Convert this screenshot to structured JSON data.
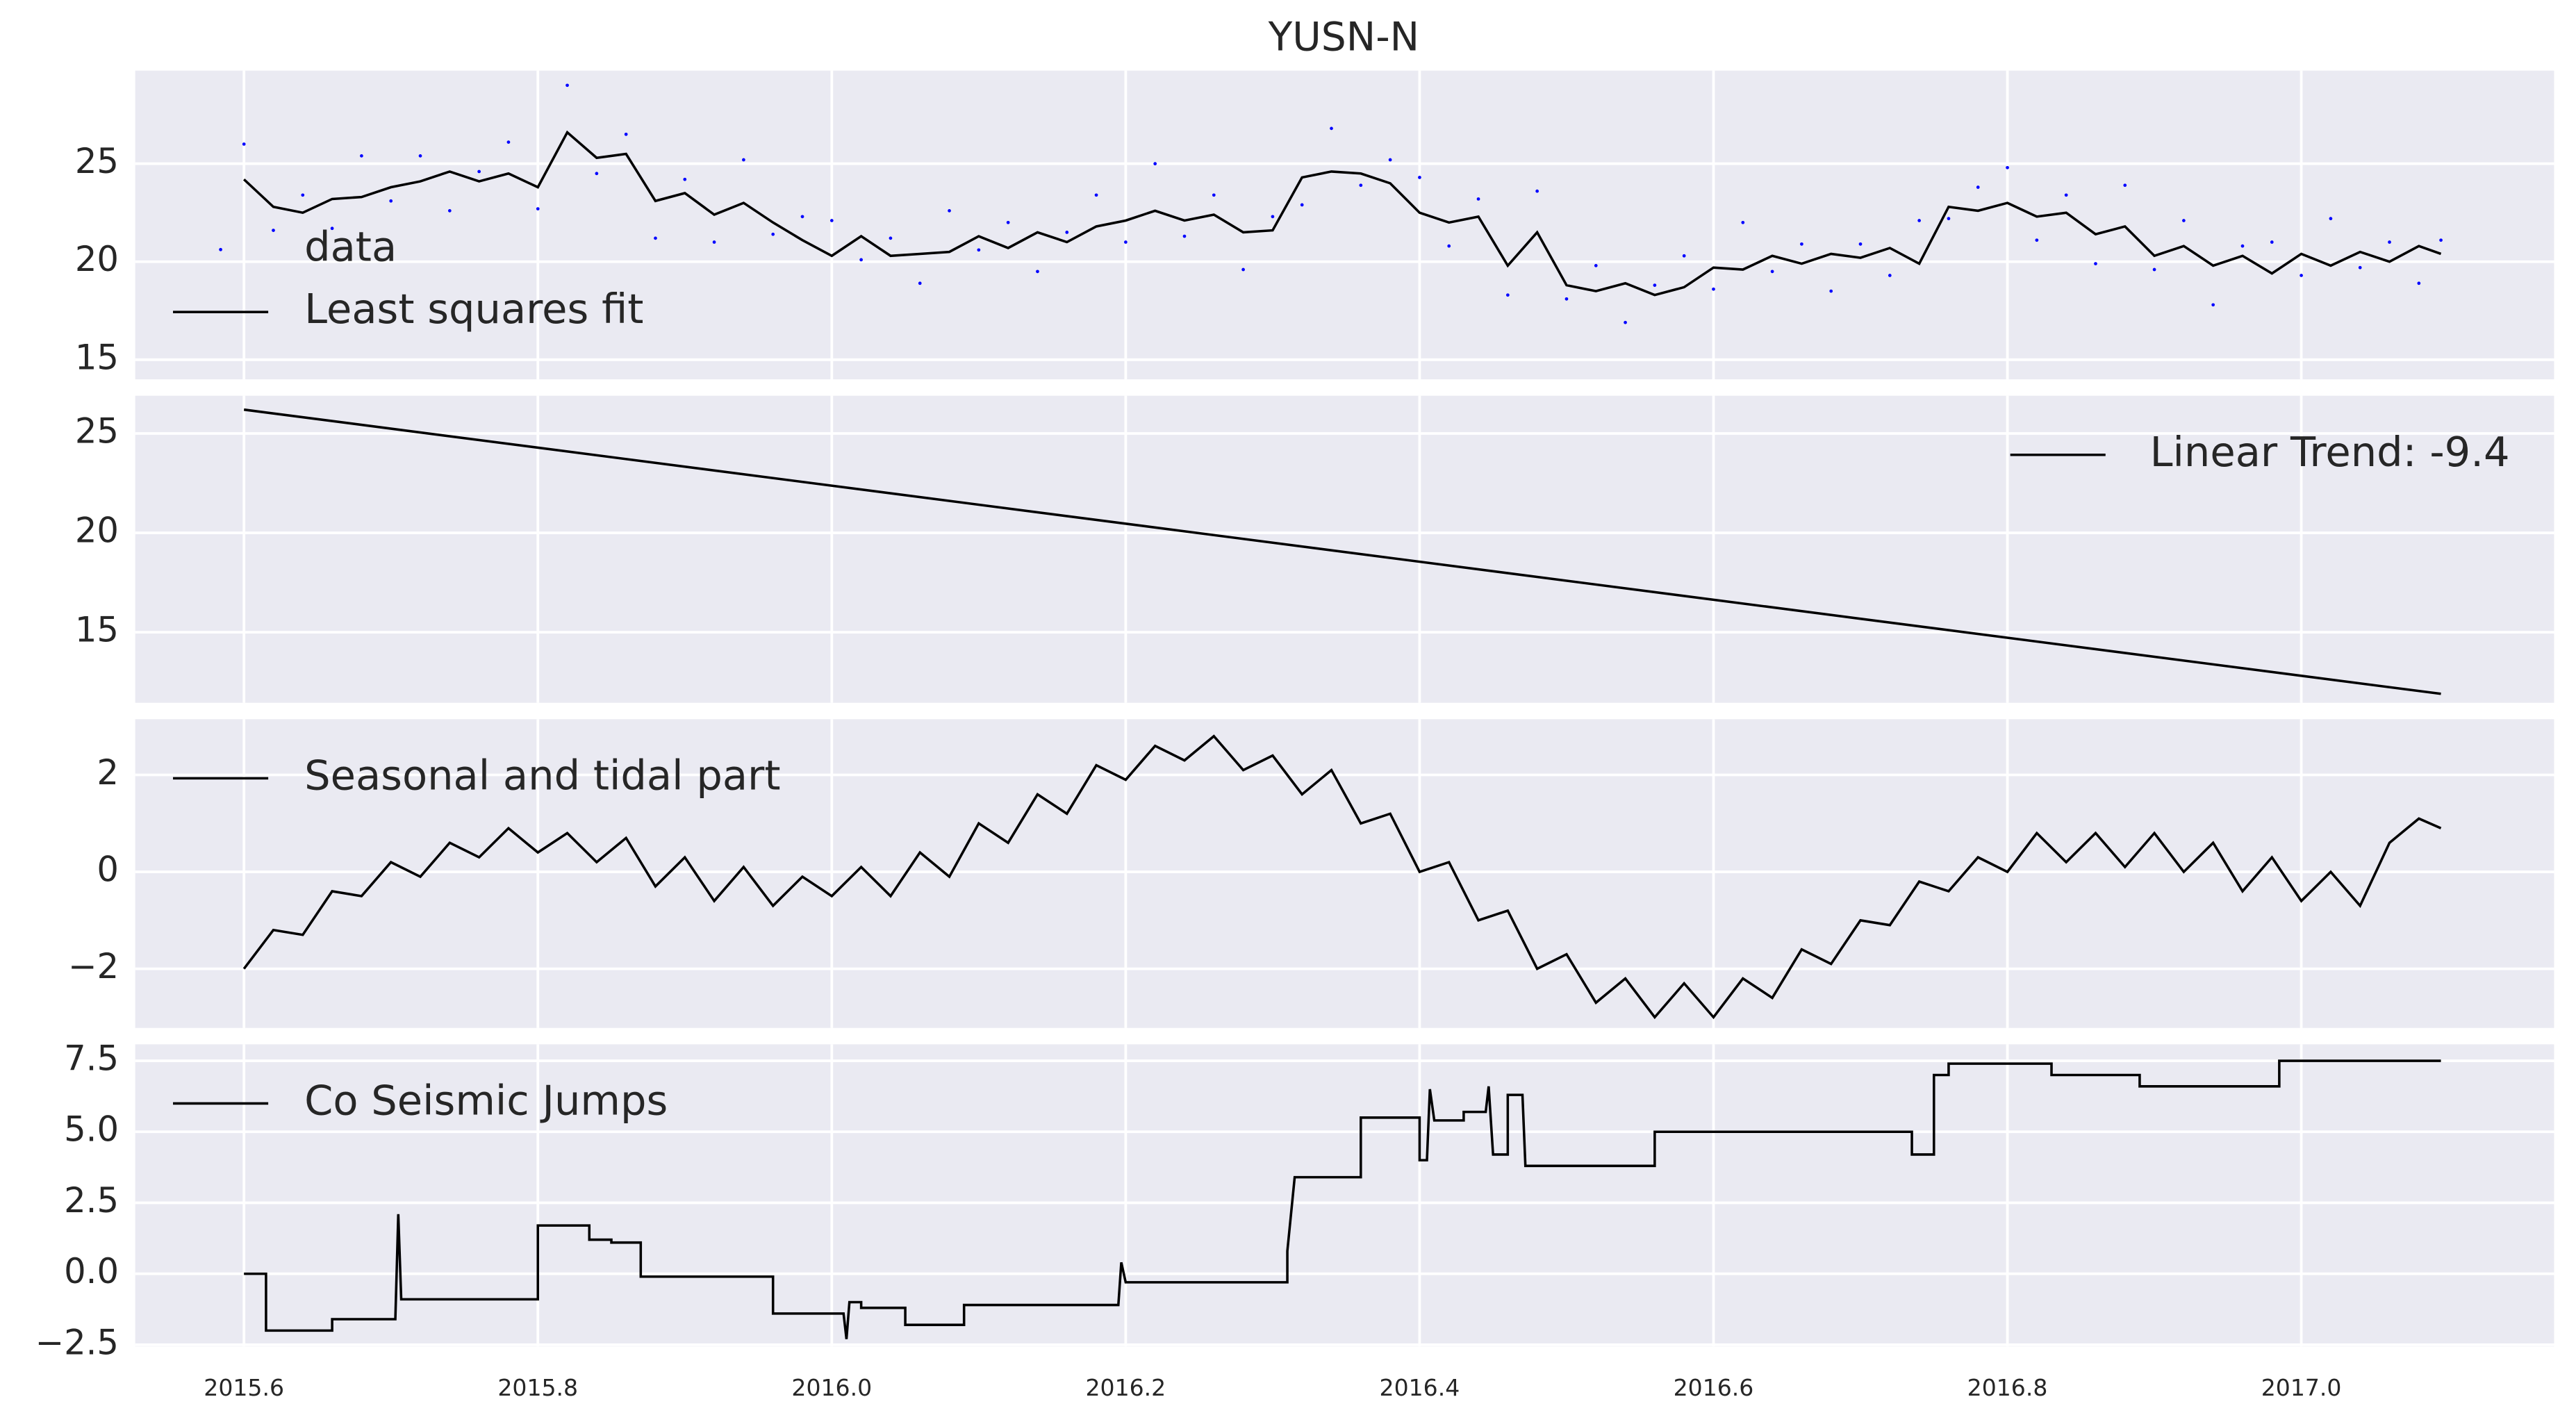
{
  "chart_data": [
    {
      "type": "line",
      "title": "YUSN-N",
      "legend": "lower left",
      "grid": true,
      "xlim": [
        2015.526,
        2017.172
      ],
      "xticks": [
        2015.6,
        2015.8,
        {
          "value": 2016.0,
          "label": "2016.0"
        },
        2016.2,
        2016.4,
        2016.6,
        2016.8,
        {
          "value": 2017.0,
          "label": "2017.0"
        }
      ],
      "ylim": [
        14.0,
        29.75
      ],
      "yticks": [
        15,
        20,
        25
      ],
      "x": [
        2015.6,
        2015.62,
        2015.64,
        2015.66,
        2015.68,
        2015.7,
        2015.72,
        2015.74,
        2015.76,
        2015.78,
        2015.8,
        2015.82,
        2015.84,
        2015.86,
        2015.88,
        2015.9,
        2015.92,
        2015.94,
        2015.96,
        2015.98,
        2016.0,
        2016.02,
        2016.04,
        2016.06,
        2016.08,
        2016.1,
        2016.12,
        2016.14,
        2016.16,
        2016.18,
        2016.2,
        2016.22,
        2016.24,
        2016.26,
        2016.28,
        2016.3,
        2016.32,
        2016.34,
        2016.36,
        2016.38,
        2016.4,
        2016.42,
        2016.44,
        2016.46,
        2016.48,
        2016.5,
        2016.52,
        2016.54,
        2016.56,
        2016.58,
        2016.6,
        2016.62,
        2016.64,
        2016.66,
        2016.68,
        2016.7,
        2016.72,
        2016.74,
        2016.76,
        2016.78,
        2016.8,
        2016.82,
        2016.84,
        2016.86,
        2016.88,
        2016.9,
        2016.92,
        2016.94,
        2016.96,
        2016.98,
        2017.0,
        2017.02,
        2017.04,
        2017.06,
        2017.08,
        2017.095
      ],
      "series": [
        {
          "name": "data",
          "type": "scatter",
          "color": "#0000ff",
          "values": [
            26.0,
            21.6,
            23.4,
            21.7,
            25.4,
            23.1,
            25.4,
            22.6,
            24.6,
            26.1,
            22.7,
            29.0,
            24.5,
            26.5,
            21.2,
            24.2,
            21.0,
            25.2,
            21.4,
            22.3,
            22.1,
            20.1,
            21.2,
            18.9,
            22.6,
            20.6,
            22.0,
            19.5,
            21.5,
            23.4,
            21.0,
            25.0,
            21.3,
            23.4,
            19.6,
            22.3,
            22.9,
            26.8,
            23.9,
            25.2,
            24.3,
            20.8,
            23.2,
            18.3,
            23.6,
            18.1,
            19.8,
            16.9,
            18.8,
            20.3,
            18.6,
            22.0,
            19.5,
            20.9,
            18.5,
            20.9,
            19.3,
            22.1,
            22.2,
            23.8,
            24.8,
            21.1,
            23.4,
            19.9,
            23.9,
            19.6,
            22.1,
            17.8,
            20.8,
            21.0,
            19.3,
            22.2,
            19.7,
            21.0,
            18.9,
            21.1
          ]
        },
        {
          "name": "Least squares fit",
          "type": "line",
          "color": "#000000",
          "values": [
            24.2,
            22.8,
            22.5,
            23.2,
            23.3,
            23.8,
            24.1,
            24.6,
            24.1,
            24.5,
            23.8,
            26.6,
            25.3,
            25.5,
            23.1,
            23.5,
            22.4,
            23.0,
            22.0,
            21.1,
            20.3,
            21.3,
            20.3,
            20.4,
            20.5,
            21.3,
            20.7,
            21.5,
            21.0,
            21.8,
            22.1,
            22.6,
            22.1,
            22.4,
            21.5,
            21.6,
            24.3,
            24.6,
            24.5,
            24.0,
            22.5,
            22.0,
            22.3,
            19.8,
            21.5,
            18.8,
            18.5,
            18.9,
            18.3,
            18.7,
            19.7,
            19.6,
            20.3,
            19.9,
            20.4,
            20.2,
            20.7,
            19.9,
            22.8,
            22.6,
            23.0,
            22.3,
            22.5,
            21.4,
            21.8,
            20.3,
            20.8,
            19.8,
            20.3,
            19.4,
            20.4,
            19.8,
            20.5,
            20.0,
            20.8,
            20.4
          ]
        }
      ]
    },
    {
      "type": "line",
      "legend": "upper right",
      "grid": true,
      "xlim": [
        2015.526,
        2017.172
      ],
      "xticks": [
        2015.6,
        2015.8,
        {
          "value": 2016.0,
          "label": "2016.0"
        },
        2016.2,
        2016.4,
        2016.6,
        2016.8,
        {
          "value": 2017.0,
          "label": "2017.0"
        }
      ],
      "ylim": [
        11.45,
        26.9
      ],
      "yticks": [
        15,
        20,
        25
      ],
      "x": [
        2015.6,
        2017.095
      ],
      "series": [
        {
          "name": "Linear Trend: -9.4",
          "type": "line",
          "color": "#000000",
          "values": [
            26.2,
            11.9
          ]
        }
      ]
    },
    {
      "type": "line",
      "legend": "upper left",
      "grid": true,
      "xlim": [
        2015.526,
        2017.172
      ],
      "xticks": [
        2015.6,
        2015.8,
        {
          "value": 2016.0,
          "label": "2016.0"
        },
        2016.2,
        2016.4,
        2016.6,
        2016.8,
        {
          "value": 2017.0,
          "label": "2017.0"
        }
      ],
      "ylim": [
        -3.22,
        3.15
      ],
      "yticks": [
        {
          "value": -2,
          "label": "−2"
        },
        0,
        2
      ],
      "x": [
        2015.6,
        2015.62,
        2015.64,
        2015.66,
        2015.68,
        2015.7,
        2015.72,
        2015.74,
        2015.76,
        2015.78,
        2015.8,
        2015.82,
        2015.84,
        2015.86,
        2015.88,
        2015.9,
        2015.92,
        2015.94,
        2015.96,
        2015.98,
        2016.0,
        2016.02,
        2016.04,
        2016.06,
        2016.08,
        2016.1,
        2016.12,
        2016.14,
        2016.16,
        2016.18,
        2016.2,
        2016.22,
        2016.24,
        2016.26,
        2016.28,
        2016.3,
        2016.32,
        2016.34,
        2016.36,
        2016.38,
        2016.4,
        2016.42,
        2016.44,
        2016.46,
        2016.48,
        2016.5,
        2016.52,
        2016.54,
        2016.56,
        2016.58,
        2016.6,
        2016.62,
        2016.64,
        2016.66,
        2016.68,
        2016.7,
        2016.72,
        2016.74,
        2016.76,
        2016.78,
        2016.8,
        2016.82,
        2016.84,
        2016.86,
        2016.88,
        2016.9,
        2016.92,
        2016.94,
        2016.96,
        2016.98,
        2017.0,
        2017.02,
        2017.04,
        2017.06,
        2017.08,
        2017.095
      ],
      "series": [
        {
          "name": "Seasonal and tidal part",
          "type": "line",
          "color": "#000000",
          "values": [
            -2.0,
            -1.2,
            -1.3,
            -0.4,
            -0.5,
            0.2,
            -0.1,
            0.6,
            0.3,
            0.9,
            0.4,
            0.8,
            0.2,
            0.7,
            -0.3,
            0.3,
            -0.6,
            0.1,
            -0.7,
            -0.1,
            -0.5,
            0.1,
            -0.5,
            0.4,
            -0.1,
            1.0,
            0.6,
            1.6,
            1.2,
            2.2,
            1.9,
            2.6,
            2.3,
            2.8,
            2.1,
            2.4,
            1.6,
            2.1,
            1.0,
            1.2,
            0.0,
            0.2,
            -1.0,
            -0.8,
            -2.0,
            -1.7,
            -2.7,
            -2.2,
            -3.0,
            -2.3,
            -3.0,
            -2.2,
            -2.6,
            -1.6,
            -1.9,
            -1.0,
            -1.1,
            -0.2,
            -0.4,
            0.3,
            0.0,
            0.8,
            0.2,
            0.8,
            0.1,
            0.8,
            0.0,
            0.6,
            -0.4,
            0.3,
            -0.6,
            0.0,
            -0.7,
            0.6,
            1.1,
            0.9
          ]
        }
      ]
    },
    {
      "type": "line",
      "legend": "upper left",
      "grid": true,
      "xlim": [
        2015.526,
        2017.172
      ],
      "xticks": [
        2015.6,
        2015.8,
        {
          "value": 2016.0,
          "label": "2016.0"
        },
        2016.2,
        2016.4,
        2016.6,
        2016.8,
        {
          "value": 2017.0,
          "label": "2017.0"
        }
      ],
      "xtick_labels": true,
      "ylim": [
        -2.56,
        8.08
      ],
      "yticks": [
        {
          "value": -2.5,
          "label": "−2.5"
        },
        {
          "value": 0,
          "label": "0.0"
        },
        2.5,
        {
          "value": 5,
          "label": "5.0"
        },
        7.5
      ],
      "x": [
        2015.6,
        2015.615,
        2015.615,
        2015.66,
        2015.66,
        2015.703,
        2015.705,
        2015.707,
        2015.8,
        2015.8,
        2015.835,
        2015.835,
        2015.85,
        2015.85,
        2015.87,
        2015.87,
        2015.96,
        2015.96,
        2016.008,
        2016.01,
        2016.012,
        2016.02,
        2016.02,
        2016.05,
        2016.05,
        2016.09,
        2016.09,
        2016.195,
        2016.197,
        2016.2,
        2016.31,
        2016.31,
        2016.315,
        2016.36,
        2016.36,
        2016.4,
        2016.4,
        2016.405,
        2016.407,
        2016.41,
        2016.43,
        2016.43,
        2016.445,
        2016.447,
        2016.45,
        2016.46,
        2016.46,
        2016.47,
        2016.472,
        2016.56,
        2016.56,
        2016.735,
        2016.735,
        2016.75,
        2016.75,
        2016.76,
        2016.76,
        2016.83,
        2016.83,
        2016.89,
        2016.89,
        2016.985,
        2016.985,
        2017.095
      ],
      "series": [
        {
          "name": "Co Seismic Jumps",
          "type": "line",
          "color": "#000000",
          "values": [
            0,
            0,
            -2,
            -2,
            -1.6,
            -1.6,
            2.1,
            -0.9,
            -0.9,
            1.7,
            1.7,
            1.2,
            1.2,
            1.1,
            1.1,
            -0.1,
            -0.1,
            -1.4,
            -1.4,
            -2.3,
            -1.0,
            -1.0,
            -1.2,
            -1.2,
            -1.8,
            -1.8,
            -1.1,
            -1.1,
            0.4,
            -0.3,
            -0.3,
            0.8,
            3.4,
            3.4,
            5.5,
            5.5,
            4.0,
            4.0,
            6.5,
            5.4,
            5.4,
            5.7,
            5.7,
            6.6,
            4.2,
            4.2,
            6.3,
            6.3,
            3.8,
            3.8,
            5.0,
            5.0,
            4.2,
            4.2,
            7.0,
            7.0,
            7.4,
            7.4,
            7.0,
            7.0,
            6.6,
            6.6,
            7.5,
            7.5
          ]
        }
      ]
    }
  ]
}
